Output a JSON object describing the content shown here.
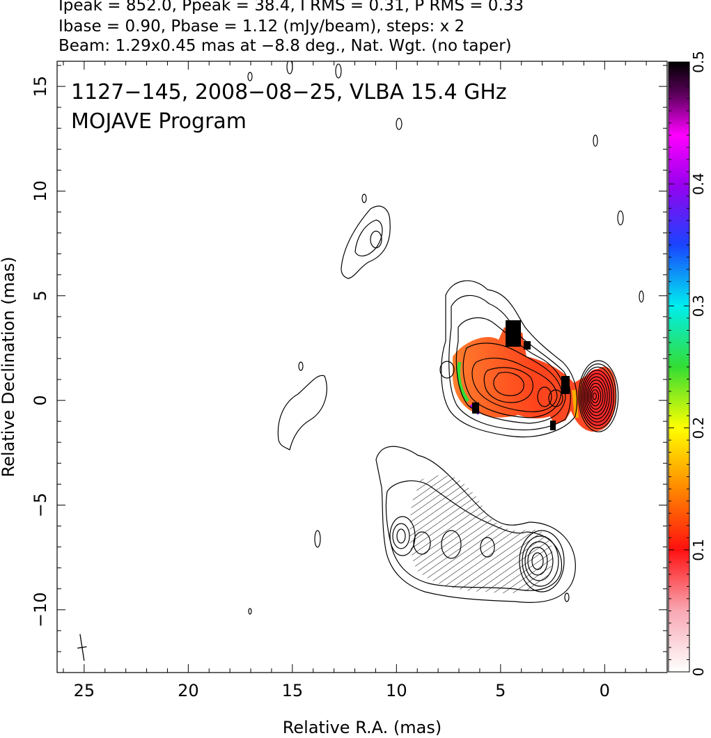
{
  "header": {
    "line1": "Ipeak = 852.0, Ppeak = 38.4, I RMS = 0.31, P RMS = 0.33",
    "line2": "Ibase = 0.90, Pbase = 1.12 (mJy/beam), steps: x 2",
    "line3": "Beam: 1.29x0.45 mas at −8.8 deg., Nat. Wgt. (no taper)"
  },
  "chart_data": {
    "type": "contour-map",
    "title_lines": [
      "1127−145, 2008−08−25, VLBA 15.4 GHz",
      "MOJAVE Program"
    ],
    "xlabel": "Relative R.A. (mas)",
    "ylabel": "Relative Declination (mas)",
    "xlim": [
      26.3,
      -3
    ],
    "ylim": [
      -13,
      16.2
    ],
    "x_ticks": [
      25,
      20,
      15,
      10,
      5,
      0
    ],
    "x_tick_labels": [
      "25",
      "20",
      "15",
      "10",
      "5",
      "0"
    ],
    "y_ticks": [
      15,
      10,
      5,
      0,
      -5,
      -10
    ],
    "y_tick_labels": [
      "15",
      "10",
      "5",
      "0",
      "−5",
      "−10"
    ],
    "colorbar": {
      "range": [
        0,
        0.5
      ],
      "ticks": [
        0,
        0.1,
        0.2,
        0.3,
        0.4,
        0.5
      ],
      "tick_labels": [
        "0",
        "0.1",
        "0.2",
        "0.3",
        "0.4",
        "0.5"
      ]
    },
    "beam": {
      "major_mas": 1.29,
      "minor_mas": 0.45,
      "pa_deg": -8.8,
      "center": [
        25.1,
        -11.8
      ]
    },
    "core": {
      "center": [
        0.3,
        0.2
      ],
      "outer_half_axes_mas": [
        0.95,
        1.7
      ],
      "n_contours": 11
    },
    "contour_color": "#000000"
  }
}
